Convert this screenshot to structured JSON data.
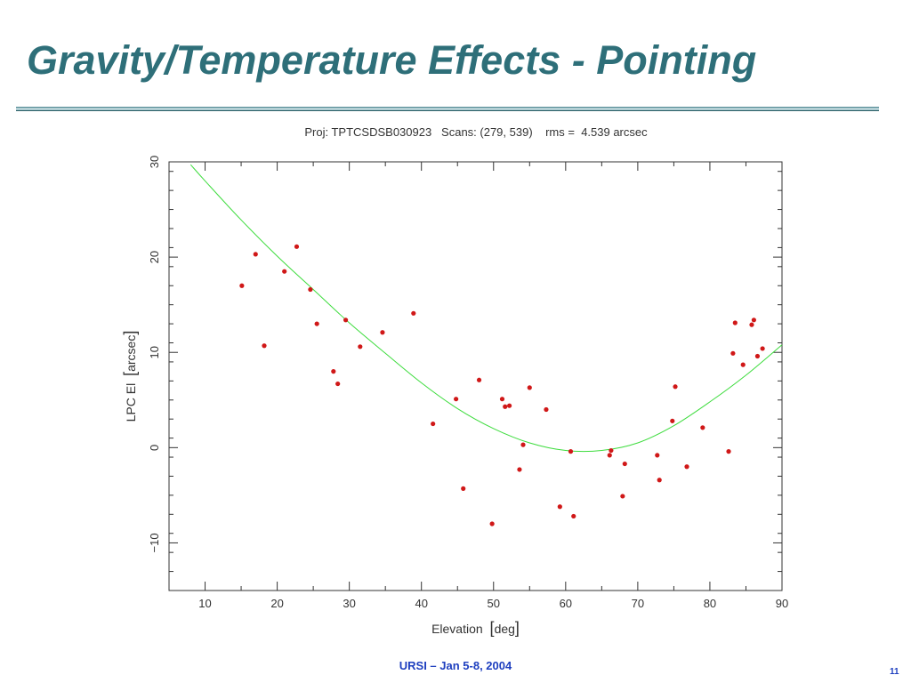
{
  "slide": {
    "title": "Gravity/Temperature Effects - Pointing",
    "footer": "URSI – Jan 5-8, 2004",
    "page_number": "11"
  },
  "colors": {
    "title": "#2e6f79",
    "footer": "#1e3fbf",
    "points": "#d01818",
    "fit_curve": "#3ddc3d",
    "axes": "#333333"
  },
  "chart_data": {
    "type": "scatter",
    "title": "Proj: TPTCSDSB030923   Scans: (279, 539)    rms =  4.539 arcsec",
    "xlabel_text": "Elevation",
    "xlabel_unit": "deg",
    "ylabel_text": "LPC El",
    "ylabel_unit": "arcsec",
    "xlim": [
      5,
      90
    ],
    "ylim": [
      -15,
      30
    ],
    "xticks": [
      10,
      20,
      30,
      40,
      50,
      60,
      70,
      80,
      90
    ],
    "yticks": [
      -10,
      0,
      10,
      20,
      30
    ],
    "ytick_labels": [
      "−10",
      "0",
      "10",
      "20",
      "30"
    ],
    "grid": false,
    "series": [
      {
        "kind": "points",
        "x": [
          15.1,
          17.0,
          18.2,
          21.0,
          22.7,
          24.6,
          25.5,
          27.8,
          28.4,
          29.5,
          31.5,
          34.6,
          38.9,
          41.6,
          44.8,
          45.8,
          48.0,
          49.8,
          51.2,
          51.6,
          52.2,
          53.6,
          54.1,
          55.0,
          57.3,
          59.2,
          60.7,
          61.1,
          66.1,
          66.3,
          67.9,
          68.2,
          72.7,
          73.0,
          74.8,
          75.2,
          76.8,
          79.0,
          82.6,
          83.2,
          83.5,
          84.6,
          85.8,
          86.1,
          86.6,
          87.3
        ],
        "y": [
          17.0,
          20.3,
          10.7,
          18.5,
          21.1,
          16.6,
          13.0,
          8.0,
          6.7,
          13.4,
          10.6,
          12.1,
          14.1,
          2.5,
          5.1,
          -4.3,
          7.1,
          -8.0,
          5.1,
          4.3,
          4.4,
          -2.3,
          0.3,
          6.3,
          4.0,
          -6.2,
          -0.4,
          -7.2,
          -0.8,
          -0.3,
          -5.1,
          -1.7,
          -0.8,
          -3.4,
          2.8,
          6.4,
          -2.0,
          2.1,
          -0.4,
          9.9,
          13.1,
          8.7,
          12.9,
          13.4,
          9.6,
          10.4
        ]
      },
      {
        "kind": "fit",
        "x": [
          8,
          10,
          15,
          20,
          25,
          30,
          35,
          40,
          45,
          50,
          55,
          60,
          65,
          70,
          75,
          80,
          85,
          90
        ],
        "y": [
          29.7,
          28.0,
          23.9,
          20.1,
          16.6,
          13.1,
          9.9,
          6.8,
          4.1,
          2.0,
          0.5,
          -0.3,
          -0.3,
          0.5,
          2.3,
          4.8,
          7.6,
          10.8
        ]
      }
    ]
  }
}
